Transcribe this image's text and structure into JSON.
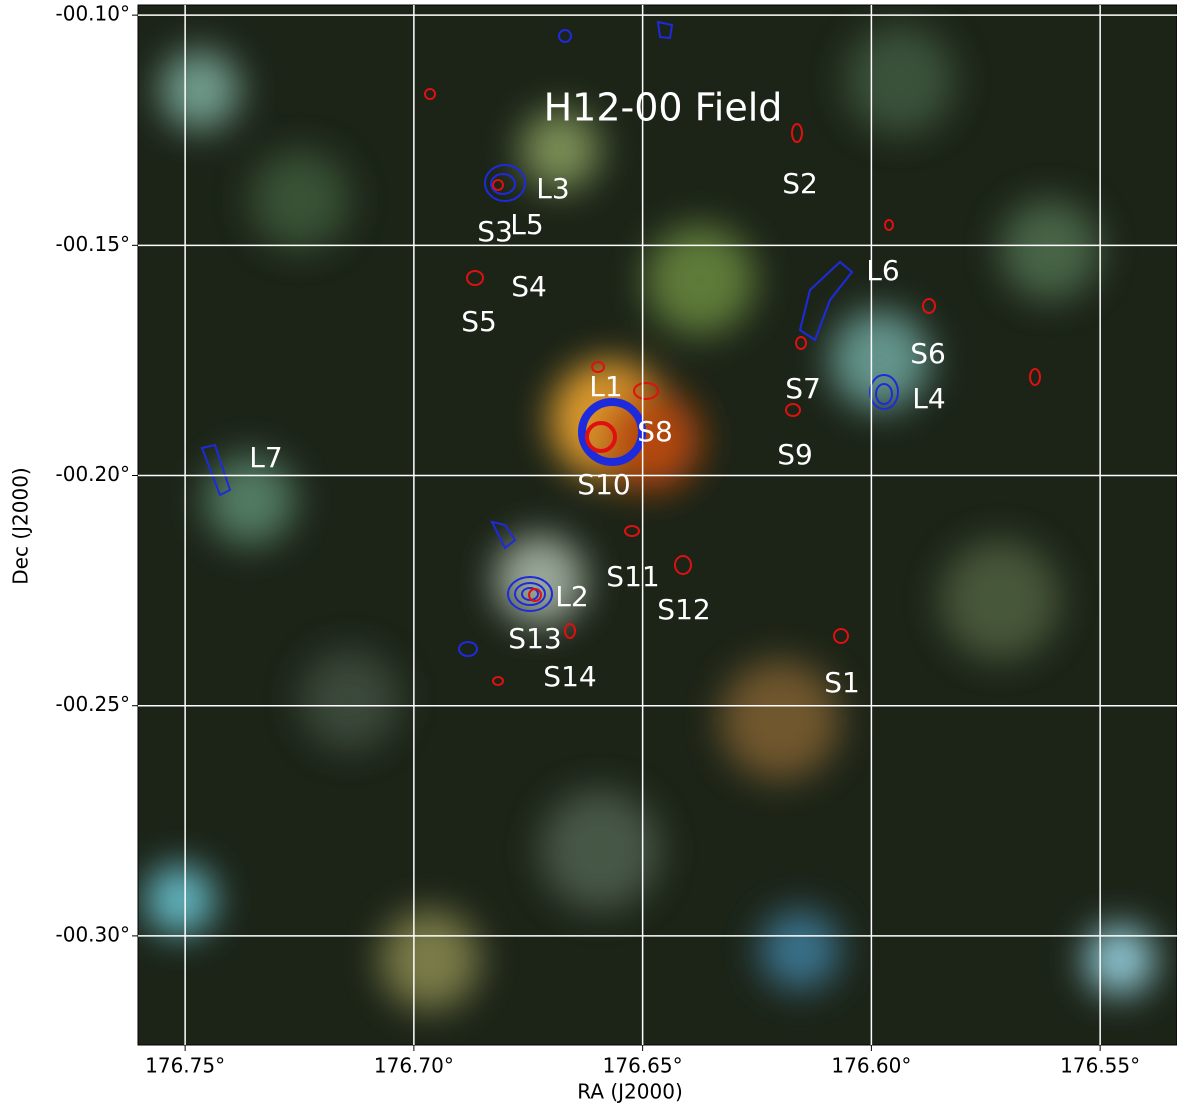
{
  "chart_data": {
    "type": "image",
    "title": "H12-00 Field",
    "x_label": "RA (J2000)",
    "y_label": "Dec (J2000)",
    "xlim": [
      176.7603,
      176.5332
    ],
    "ylim": [
      -0.3237,
      -0.0978
    ],
    "xticks": [
      {
        "value": 176.75,
        "label": "176.75°"
      },
      {
        "value": 176.7,
        "label": "176.70°"
      },
      {
        "value": 176.65,
        "label": "176.65°"
      },
      {
        "value": 176.6,
        "label": "176.60°"
      },
      {
        "value": 176.55,
        "label": "176.55°"
      }
    ],
    "yticks": [
      {
        "value": -0.1,
        "label": "-00.10°"
      },
      {
        "value": -0.15,
        "label": "-00.15°"
      },
      {
        "value": -0.2,
        "label": "-00.20°"
      },
      {
        "value": -0.25,
        "label": "-00.25°"
      },
      {
        "value": -0.3,
        "label": "-00.30°"
      }
    ],
    "grid": true,
    "annotations": [
      "L3",
      "L5",
      "S3",
      "S2",
      "L6",
      "S4",
      "S5",
      "S6",
      "S7",
      "L4",
      "L1",
      "S8",
      "S9",
      "L7",
      "S10",
      "S11",
      "S12",
      "L2",
      "S13",
      "S14",
      "S1"
    ]
  }
}
